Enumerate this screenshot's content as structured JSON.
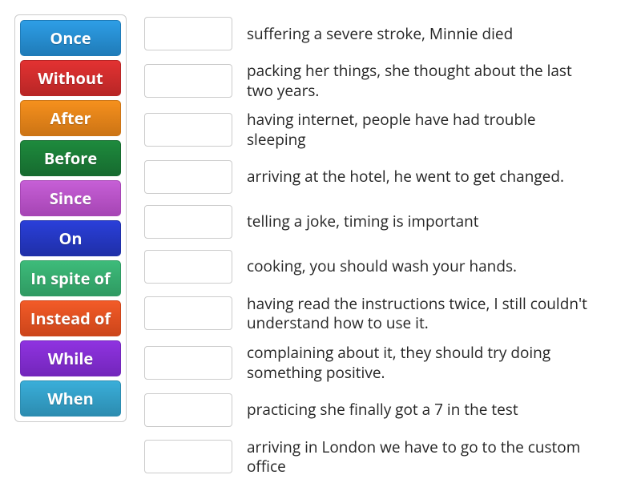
{
  "tiles": [
    {
      "label": "Once",
      "bg": "#2e9ee6",
      "border": "#1f7bb8"
    },
    {
      "label": "Without",
      "bg": "#e33232",
      "border": "#b82626"
    },
    {
      "label": "After",
      "bg": "#f5901d",
      "border": "#cc7415"
    },
    {
      "label": "Before",
      "bg": "#1e8a3d",
      "border": "#166b2f"
    },
    {
      "label": "Since",
      "bg": "#c65fd6",
      "border": "#a645b4"
    },
    {
      "label": "On",
      "bg": "#2a3fd9",
      "border": "#1f2fa8"
    },
    {
      "label": "In spite of",
      "bg": "#3dbb7a",
      "border": "#2f9a62"
    },
    {
      "label": "Instead of",
      "bg": "#f25b28",
      "border": "#cc451a"
    },
    {
      "label": "While",
      "bg": "#8f33e0",
      "border": "#7326bb"
    },
    {
      "label": "When",
      "bg": "#3aaed9",
      "border": "#2c8cb0"
    }
  ],
  "rows": [
    {
      "text": "suffering a severe stroke, Minnie died"
    },
    {
      "text": "packing her things, she thought about the last two years."
    },
    {
      "text": "having internet, people have had trouble sleeping"
    },
    {
      "text": "arriving at the hotel, he went to get changed."
    },
    {
      "text": "telling a joke, timing is important"
    },
    {
      "text": "cooking, you should wash your hands."
    },
    {
      "text": "having read the instructions twice, I still couldn't understand how to use it."
    },
    {
      "text": "complaining about it, they should try doing something positive."
    },
    {
      "text": "practicing she finally got a 7 in the test"
    },
    {
      "text": "arriving in London we have to go to the custom office"
    }
  ]
}
